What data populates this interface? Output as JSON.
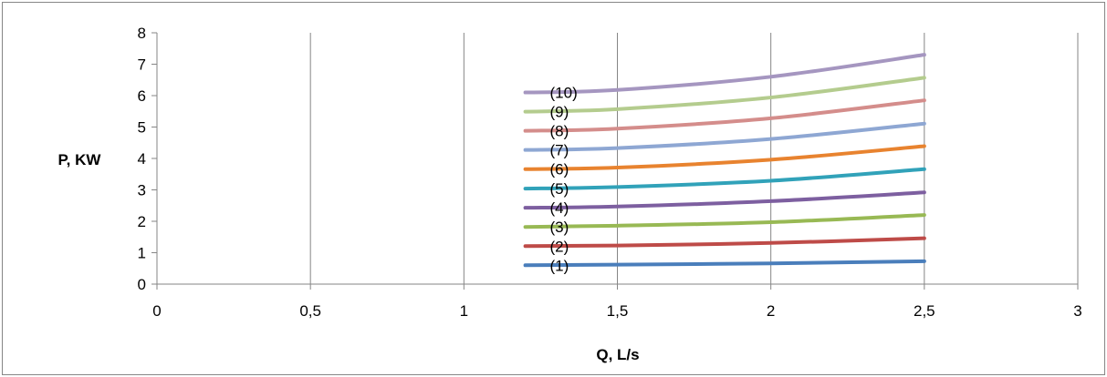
{
  "chart_data": {
    "type": "line",
    "title": "",
    "xlabel": "Q, L/s",
    "ylabel": "P, KW",
    "xlim": [
      0,
      3
    ],
    "ylim": [
      0,
      8
    ],
    "x_ticks": [
      0,
      0.5,
      1,
      1.5,
      2,
      2.5,
      3
    ],
    "x_tick_labels": [
      "0",
      "0,5",
      "1",
      "1,5",
      "2",
      "2,5",
      "3"
    ],
    "y_ticks": [
      0,
      1,
      2,
      3,
      4,
      5,
      6,
      7,
      8
    ],
    "y_tick_labels": [
      "0",
      "1",
      "2",
      "3",
      "4",
      "5",
      "6",
      "7",
      "8"
    ],
    "grid": {
      "vertical": true,
      "horizontal": false
    },
    "legend": "none",
    "series": [
      {
        "label": "(1)",
        "color": "#4a7ebb",
        "x": [
          1.2,
          1.5,
          2.0,
          2.5
        ],
        "y": [
          0.6,
          0.62,
          0.66,
          0.73
        ]
      },
      {
        "label": "(2)",
        "color": "#be4b48",
        "x": [
          1.2,
          1.5,
          2.0,
          2.5
        ],
        "y": [
          1.21,
          1.23,
          1.31,
          1.46
        ]
      },
      {
        "label": "(3)",
        "color": "#98b954",
        "x": [
          1.2,
          1.5,
          2.0,
          2.5
        ],
        "y": [
          1.82,
          1.86,
          1.97,
          2.2
        ]
      },
      {
        "label": "(4)",
        "color": "#7d5fa0",
        "x": [
          1.2,
          1.5,
          2.0,
          2.5
        ],
        "y": [
          2.43,
          2.47,
          2.64,
          2.92
        ]
      },
      {
        "label": "(5)",
        "color": "#31a2b9",
        "x": [
          1.2,
          1.5,
          2.0,
          2.5
        ],
        "y": [
          3.04,
          3.09,
          3.29,
          3.66
        ]
      },
      {
        "label": "(6)",
        "color": "#e8832f",
        "x": [
          1.2,
          1.5,
          2.0,
          2.5
        ],
        "y": [
          3.66,
          3.71,
          3.96,
          4.39
        ]
      },
      {
        "label": "(7)",
        "color": "#8ea7d3",
        "x": [
          1.2,
          1.5,
          2.0,
          2.5
        ],
        "y": [
          4.27,
          4.33,
          4.62,
          5.11
        ]
      },
      {
        "label": "(8)",
        "color": "#d48d8b",
        "x": [
          1.2,
          1.5,
          2.0,
          2.5
        ],
        "y": [
          4.88,
          4.95,
          5.28,
          5.85
        ]
      },
      {
        "label": "(9)",
        "color": "#b4cc8e",
        "x": [
          1.2,
          1.5,
          2.0,
          2.5
        ],
        "y": [
          5.49,
          5.57,
          5.94,
          6.57
        ]
      },
      {
        "label": "(10)",
        "color": "#a596c0",
        "x": [
          1.2,
          1.5,
          2.0,
          2.5
        ],
        "y": [
          6.1,
          6.18,
          6.6,
          7.3
        ]
      }
    ]
  }
}
